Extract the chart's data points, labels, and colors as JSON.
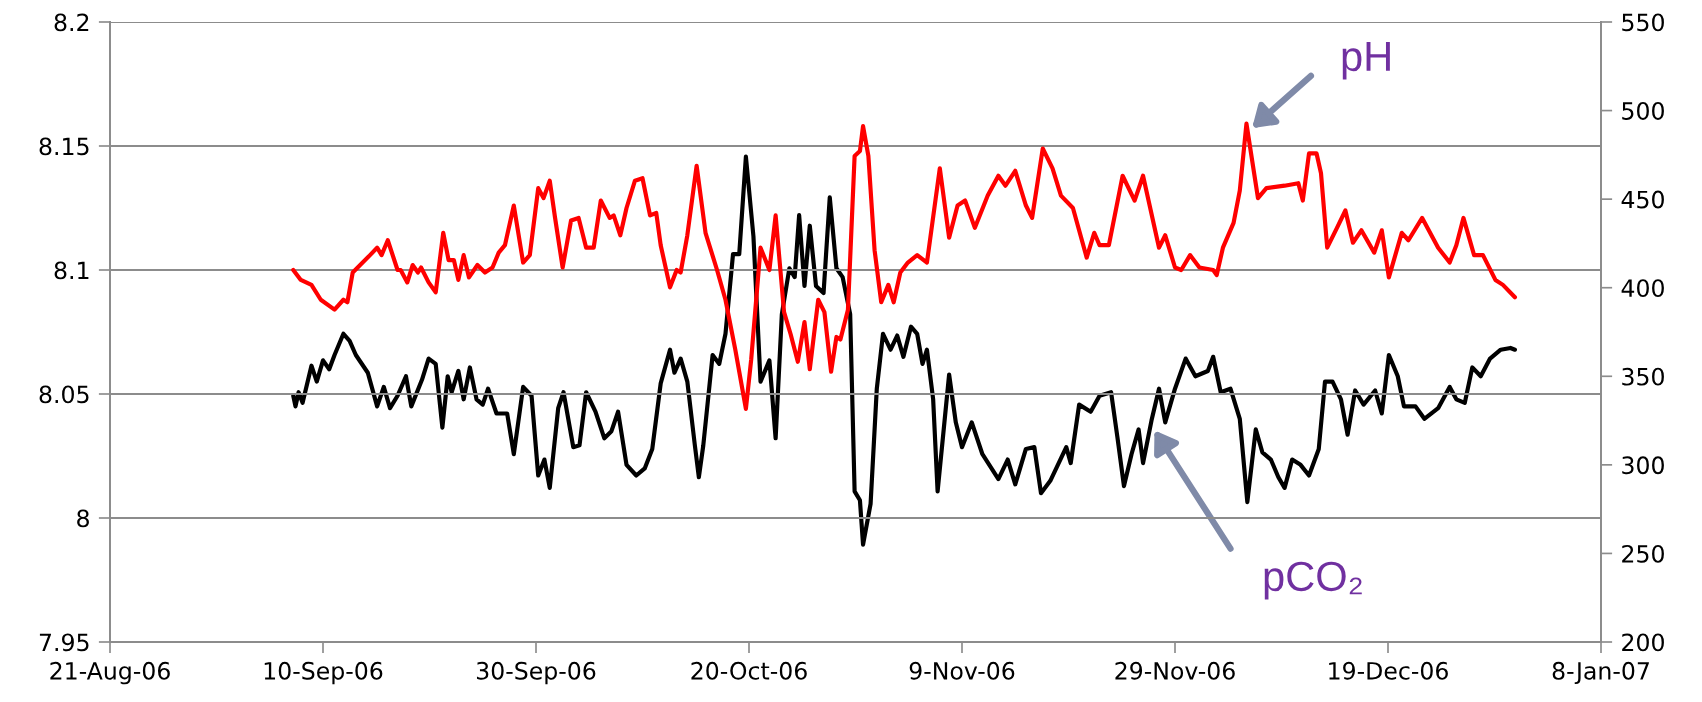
{
  "chart_data": {
    "type": "line",
    "xlim": [
      "2006-08-21",
      "2007-01-08"
    ],
    "xticks": [
      {
        "value": "2006-08-21",
        "label": "21-Aug-06"
      },
      {
        "value": "2006-09-10",
        "label": "10-Sep-06"
      },
      {
        "value": "2006-09-30",
        "label": "30-Sep-06"
      },
      {
        "value": "2006-10-20",
        "label": "20-Oct-06"
      },
      {
        "value": "2006-11-09",
        "label": "9-Nov-06"
      },
      {
        "value": "2006-11-29",
        "label": "29-Nov-06"
      },
      {
        "value": "2006-12-19",
        "label": "19-Dec-06"
      },
      {
        "value": "2007-01-08",
        "label": "8-Jan-07"
      }
    ],
    "ylim": [
      7.95,
      8.2
    ],
    "yticks": [
      7.95,
      8,
      8.05,
      8.1,
      8.15,
      8.2
    ],
    "y2lim": [
      200,
      550
    ],
    "y2ticks": [
      200,
      250,
      300,
      350,
      400,
      450,
      500,
      550
    ],
    "grid": "y",
    "marker": "none",
    "line_style": "solid",
    "annotations": [
      "pH",
      "pCO₂"
    ],
    "series": [
      {
        "color": "#ff0000",
        "x": [
          "2006-09-07T05:00",
          "2006-09-07T22:00",
          "2006-09-08T22:00",
          "2006-09-09T19:00",
          "2006-09-11T02:00",
          "2006-09-11T22:00",
          "2006-09-12T07:00",
          "2006-09-12T19:00",
          "2006-09-14T10:00",
          "2006-09-15T02:00",
          "2006-09-15T12:00",
          "2006-09-16T02:00",
          "2006-09-17T00:00",
          "2006-09-17T07:00",
          "2006-09-17T22:00",
          "2006-09-18T10:00",
          "2006-09-18T22:00",
          "2006-09-19T05:00",
          "2006-09-19T22:00",
          "2006-09-20T14:00",
          "2006-09-21T07:00",
          "2006-09-21T19:00",
          "2006-09-22T07:00",
          "2006-09-22T17:00",
          "2006-09-23T05:00",
          "2006-09-23T17:00",
          "2006-09-24T12:00",
          "2006-09-25T05:00",
          "2006-09-25T22:00",
          "2006-09-26T12:00",
          "2006-09-27T02:00",
          "2006-09-27T22:00",
          "2006-09-28T19:00",
          "2006-09-29T10:00",
          "2006-09-30T05:00",
          "2006-09-30T17:00",
          "2006-10-01T07:00",
          "2006-10-01T19:00",
          "2006-10-02T12:00",
          "2006-10-03T07:00",
          "2006-10-04T00:00",
          "2006-10-04T17:00",
          "2006-10-05T10:00",
          "2006-10-06T02:00",
          "2006-10-06T22:00",
          "2006-10-07T07:00",
          "2006-10-07T22:00",
          "2006-10-08T12:00",
          "2006-10-09T07:00",
          "2006-10-10T00:00",
          "2006-10-10T17:00",
          "2006-10-11T07:00",
          "2006-10-11T17:00",
          "2006-10-12T14:00",
          "2006-10-13T05:00",
          "2006-10-13T14:00",
          "2006-10-14T05:00",
          "2006-10-15T02:00",
          "2006-10-15T22:00",
          "2006-10-17T00:00",
          "2006-10-17T19:00",
          "2006-10-18T17:00",
          "2006-10-19T17:00",
          "2006-10-20T05:00",
          "2006-10-21T02:00",
          "2006-10-21T22:00",
          "2006-10-22T12:00",
          "2006-10-23T07:00",
          "2006-10-23T22:00",
          "2006-10-24T14:00",
          "2006-10-25T05:00",
          "2006-10-25T17:00",
          "2006-10-26T12:00",
          "2006-10-27T02:00",
          "2006-10-27T17:00",
          "2006-10-28T05:00",
          "2006-10-28T14:00",
          "2006-10-29T07:00",
          "2006-10-29T22:00",
          "2006-10-30T10:00",
          "2006-10-30T17:00",
          "2006-10-31T05:00",
          "2006-10-31T19:00",
          "2006-11-01T10:00",
          "2006-11-02T02:00",
          "2006-11-02T14:00",
          "2006-11-03T05:00",
          "2006-11-03T22:00",
          "2006-11-04T19:00",
          "2006-11-05T17:00",
          "2006-11-06T22:00",
          "2006-11-07T19:00",
          "2006-11-08T14:00",
          "2006-11-09T07:00",
          "2006-11-10T05:00",
          "2006-11-11T10:00",
          "2006-11-12T10:00",
          "2006-11-13T02:00",
          "2006-11-14T00:00",
          "2006-11-15T00:00",
          "2006-11-15T14:00",
          "2006-11-16T14:00",
          "2006-11-17T12:00",
          "2006-11-18T07:00",
          "2006-11-19T10:00",
          "2006-11-20T17:00",
          "2006-11-21T10:00",
          "2006-11-21T22:00",
          "2006-11-22T19:00",
          "2006-11-24T02:00",
          "2006-11-25T05:00",
          "2006-11-26T00:00",
          "2006-11-27T12:00",
          "2006-11-28T02:00",
          "2006-11-29T00:00",
          "2006-11-29T14:00",
          "2006-11-30T10:00",
          "2006-12-01T07:00",
          "2006-12-02T14:00",
          "2006-12-02T22:00",
          "2006-12-03T12:00",
          "2006-12-04T12:00",
          "2006-12-05T02:00",
          "2006-12-05T17:00",
          "2006-12-06T19:00",
          "2006-12-07T14:00",
          "2006-12-09T07:00",
          "2006-12-10T14:00",
          "2006-12-11T00:00",
          "2006-12-11T14:00",
          "2006-12-12T07:00",
          "2006-12-12T17:00",
          "2006-12-13T07:00",
          "2006-12-14T05:00",
          "2006-12-15T00:00",
          "2006-12-15T17:00",
          "2006-12-16T12:00",
          "2006-12-17T17:00",
          "2006-12-18T10:00",
          "2006-12-19T02:00",
          "2006-12-20T07:00",
          "2006-12-20T22:00",
          "2006-12-22T05:00",
          "2006-12-23T17:00",
          "2006-12-24T19:00",
          "2006-12-25T10:00",
          "2006-12-26T02:00",
          "2006-12-27T02:00",
          "2006-12-27T22:00",
          "2006-12-29T02:00",
          "2006-12-29T19:00",
          "2006-12-30T22:00"
        ],
        "values": [
          8.1,
          8.096,
          8.094,
          8.088,
          8.084,
          8.088,
          8.087,
          8.099,
          8.106,
          8.109,
          8.106,
          8.112,
          8.1,
          8.1,
          8.095,
          8.102,
          8.099,
          8.101,
          8.095,
          8.091,
          8.115,
          8.104,
          8.104,
          8.096,
          8.106,
          8.097,
          8.102,
          8.099,
          8.101,
          8.107,
          8.11,
          8.126,
          8.103,
          8.106,
          8.133,
          8.129,
          8.136,
          8.121,
          8.101,
          8.12,
          8.121,
          8.109,
          8.109,
          8.128,
          8.121,
          8.122,
          8.114,
          8.125,
          8.136,
          8.137,
          8.122,
          8.123,
          8.11,
          8.093,
          8.1,
          8.099,
          8.114,
          8.142,
          8.115,
          8.1,
          8.088,
          8.068,
          8.044,
          8.064,
          8.109,
          8.1,
          8.122,
          8.083,
          8.074,
          8.063,
          8.079,
          8.06,
          8.088,
          8.083,
          8.059,
          8.073,
          8.072,
          8.084,
          8.146,
          8.148,
          8.158,
          8.146,
          8.108,
          8.087,
          8.094,
          8.087,
          8.099,
          8.103,
          8.106,
          8.103,
          8.141,
          8.113,
          8.126,
          8.128,
          8.117,
          8.13,
          8.138,
          8.134,
          8.14,
          8.126,
          8.121,
          8.149,
          8.141,
          8.13,
          8.125,
          8.105,
          8.115,
          8.11,
          8.11,
          8.138,
          8.128,
          8.138,
          8.109,
          8.114,
          8.101,
          8.1,
          8.106,
          8.101,
          8.1,
          8.098,
          8.109,
          8.119,
          8.132,
          8.159,
          8.129,
          8.133,
          8.134,
          8.135,
          8.128,
          8.147,
          8.147,
          8.139,
          8.109,
          8.117,
          8.124,
          8.111,
          8.116,
          8.107,
          8.116,
          8.097,
          8.115,
          8.112,
          8.121,
          8.109,
          8.103,
          8.11,
          8.121,
          8.106,
          8.106,
          8.096,
          8.094,
          8.089
        ]
      },
      {
        "color": "#000000",
        "axis": "y2",
        "x": [
          "2006-09-07T05:00",
          "2006-09-07T10:00",
          "2006-09-07T17:00",
          "2006-09-08T02:00",
          "2006-09-08T22:00",
          "2006-09-09T10:00",
          "2006-09-10T00:00",
          "2006-09-10T14:00",
          "2006-09-11T02:00",
          "2006-09-11T22:00",
          "2006-09-12T12:00",
          "2006-09-13T02:00",
          "2006-09-14T05:00",
          "2006-09-15T02:00",
          "2006-09-15T17:00",
          "2006-09-16T07:00",
          "2006-09-17T00:00",
          "2006-09-17T19:00",
          "2006-09-18T07:00",
          "2006-09-19T07:00",
          "2006-09-19T22:00",
          "2006-09-20T14:00",
          "2006-09-21T05:00",
          "2006-09-21T17:00",
          "2006-09-22T02:00",
          "2006-09-22T17:00",
          "2006-09-23T05:00",
          "2006-09-23T19:00",
          "2006-09-24T10:00",
          "2006-09-25T00:00",
          "2006-09-25T12:00",
          "2006-09-26T07:00",
          "2006-09-27T07:00",
          "2006-09-27T22:00",
          "2006-09-28T19:00",
          "2006-09-29T14:00",
          "2006-09-30T05:00",
          "2006-09-30T19:00",
          "2006-10-01T07:00",
          "2006-10-02T02:00",
          "2006-10-02T14:00",
          "2006-10-03T12:00",
          "2006-10-04T02:00",
          "2006-10-04T17:00",
          "2006-10-05T14:00",
          "2006-10-06T10:00",
          "2006-10-07T02:00",
          "2006-10-07T17:00",
          "2006-10-08T12:00",
          "2006-10-09T10:00",
          "2006-10-10T05:00",
          "2006-10-10T22:00",
          "2006-10-11T17:00",
          "2006-10-12T14:00",
          "2006-10-13T00:00",
          "2006-10-13T14:00",
          "2006-10-14T05:00",
          "2006-10-14T22:00",
          "2006-10-15T07:00",
          "2006-10-15T17:00",
          "2006-10-16T14:00",
          "2006-10-17T05:00",
          "2006-10-17T19:00",
          "2006-10-18T12:00",
          "2006-10-19T02:00",
          "2006-10-19T17:00",
          "2006-10-20T10:00",
          "2006-10-21T02:00",
          "2006-10-21T22:00",
          "2006-10-22T12:00",
          "2006-10-23T02:00",
          "2006-10-23T19:00",
          "2006-10-24T07:00",
          "2006-10-24T17:00",
          "2006-10-25T05:00",
          "2006-10-25T17:00",
          "2006-10-26T07:00",
          "2006-10-27T00:00",
          "2006-10-27T14:00",
          "2006-10-28T05:00",
          "2006-10-28T19:00",
          "2006-10-29T12:00",
          "2006-10-29T22:00",
          "2006-10-30T10:00",
          "2006-10-30T17:00",
          "2006-10-31T10:00",
          "2006-11-01T00:00",
          "2006-11-01T14:00",
          "2006-11-02T07:00",
          "2006-11-02T22:00",
          "2006-11-03T12:00",
          "2006-11-04T05:00",
          "2006-11-04T19:00",
          "2006-11-05T07:00",
          "2006-11-05T17:00",
          "2006-11-06T07:00",
          "2006-11-06T17:00",
          "2006-11-07T19:00",
          "2006-11-08T10:00",
          "2006-11-09T00:00",
          "2006-11-09T22:00",
          "2006-11-10T22:00",
          "2006-11-12T10:00",
          "2006-11-13T07:00",
          "2006-11-14T00:00",
          "2006-11-15T00:00",
          "2006-11-15T19:00",
          "2006-11-16T10:00",
          "2006-11-17T07:00",
          "2006-11-18T19:00",
          "2006-11-19T05:00",
          "2006-11-20T00:00",
          "2006-11-21T02:00",
          "2006-11-21T22:00",
          "2006-11-23T00:00",
          "2006-11-23T14:00",
          "2006-11-24T05:00",
          "2006-11-24T22:00",
          "2006-11-25T14:00",
          "2006-11-26T00:00",
          "2006-11-26T19:00",
          "2006-11-27T12:00",
          "2006-11-28T02:00",
          "2006-11-29T00:00",
          "2006-11-30T00:00",
          "2006-11-30T22:00",
          "2006-12-02T02:00",
          "2006-12-02T14:00",
          "2006-12-03T07:00",
          "2006-12-04T05:00",
          "2006-12-05T02:00",
          "2006-12-05T19:00",
          "2006-12-06T14:00",
          "2006-12-07T05:00",
          "2006-12-08T00:00",
          "2006-12-08T17:00",
          "2006-12-09T07:00",
          "2006-12-10T00:00",
          "2006-12-10T19:00",
          "2006-12-11T14:00",
          "2006-12-12T12:00",
          "2006-12-13T02:00",
          "2006-12-13T19:00",
          "2006-12-14T14:00",
          "2006-12-15T05:00",
          "2006-12-15T22:00",
          "2006-12-16T17:00",
          "2006-12-17T19:00",
          "2006-12-18T10:00",
          "2006-12-19T02:00",
          "2006-12-19T22:00",
          "2006-12-20T12:00",
          "2006-12-21T14:00",
          "2006-12-22T10:00",
          "2006-12-23T17:00",
          "2006-12-24T19:00",
          "2006-12-25T10:00",
          "2006-12-26T05:00",
          "2006-12-26T22:00",
          "2006-12-27T17:00",
          "2006-12-28T14:00",
          "2006-12-29T14:00",
          "2006-12-30T12:00",
          "2006-12-30T22:00"
        ],
        "values": [
          339,
          333,
          341,
          335,
          356,
          347,
          359,
          354,
          362,
          374,
          370,
          362,
          352,
          333,
          344,
          332,
          339,
          350,
          333,
          348,
          360,
          357,
          321,
          350,
          341,
          353,
          337,
          355,
          337,
          334,
          343,
          329,
          329,
          306,
          344,
          339,
          294,
          303,
          287,
          332,
          341,
          310,
          311,
          341,
          330,
          315,
          319,
          330,
          300,
          294,
          298,
          309,
          346,
          365,
          352,
          360,
          347,
          311,
          293,
          311,
          362,
          357,
          374,
          419,
          419,
          474,
          429,
          347,
          359,
          315,
          385,
          411,
          406,
          441,
          401,
          435,
          401,
          397,
          451,
          411,
          406,
          385,
          285,
          280,
          255,
          278,
          343,
          374,
          365,
          373,
          361,
          378,
          374,
          357,
          365,
          337,
          285,
          351,
          324,
          310,
          324,
          306,
          292,
          303,
          289,
          309,
          310,
          284,
          291,
          310,
          301,
          334,
          330,
          339,
          341,
          316,
          288,
          306,
          320,
          301,
          325,
          343,
          324,
          343,
          360,
          350,
          353,
          361,
          341,
          343,
          326,
          279,
          320,
          307,
          303,
          293,
          287,
          303,
          300,
          294,
          309,
          347,
          347,
          337,
          317,
          342,
          334,
          342,
          329,
          362,
          350,
          333,
          333,
          326,
          332,
          344,
          337,
          335,
          355,
          350,
          360,
          365,
          366,
          365
        ]
      }
    ]
  }
}
